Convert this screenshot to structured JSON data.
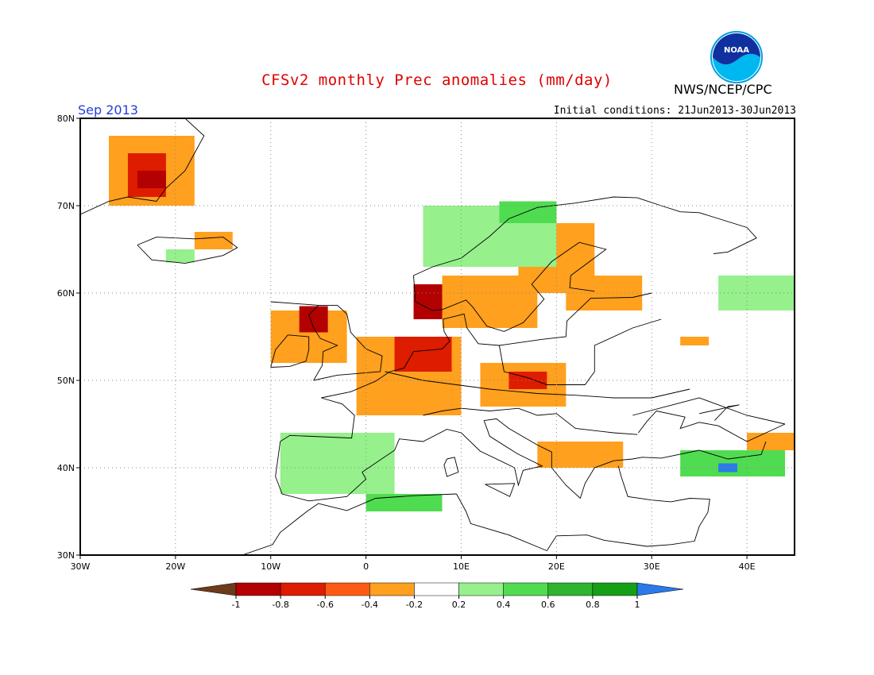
{
  "header": {
    "title": "CFSv2 monthly Prec anomalies (mm/day)",
    "org": "NWS/NCEP/CPC",
    "logo_text": "NOAA",
    "month": "Sep 2013",
    "init": "Initial conditions: 21Jun2013-30Jun2013"
  },
  "map": {
    "lon_range": [
      -30,
      45
    ],
    "lat_range": [
      30,
      80
    ],
    "lon_ticks": [
      {
        "v": -30,
        "label": "30W"
      },
      {
        "v": -20,
        "label": "20W"
      },
      {
        "v": -10,
        "label": "10W"
      },
      {
        "v": 0,
        "label": "0"
      },
      {
        "v": 10,
        "label": "10E"
      },
      {
        "v": 20,
        "label": "20E"
      },
      {
        "v": 30,
        "label": "30E"
      },
      {
        "v": 40,
        "label": "40E"
      }
    ],
    "lat_ticks": [
      {
        "v": 30,
        "label": "30N"
      },
      {
        "v": 40,
        "label": "40N"
      },
      {
        "v": 50,
        "label": "50N"
      },
      {
        "v": 60,
        "label": "60N"
      },
      {
        "v": 70,
        "label": "70N"
      },
      {
        "v": 80,
        "label": "80N"
      }
    ],
    "grid": true
  },
  "colorbar": {
    "labels": [
      "-1",
      "-0.8",
      "-0.6",
      "-0.4",
      "-0.2",
      "0.2",
      "0.4",
      "0.6",
      "0.8",
      "1"
    ],
    "colors": [
      "#6e3a1c",
      "#b30000",
      "#dd1c00",
      "#ff5a14",
      "#ffa01e",
      "#ffffff",
      "#96f08c",
      "#50dc50",
      "#2eb42e",
      "#14a014",
      "#2a7aea"
    ]
  },
  "chart_data": {
    "type": "heatmap",
    "variable": "Prec anomalies (mm/day)",
    "categories_legend": [
      "<-1",
      "-1 to -0.8",
      "-0.8 to -0.6",
      "-0.6 to -0.4",
      "-0.4 to -0.2",
      "-0.2 to 0.2",
      "0.2 to 0.4",
      "0.4 to 0.6",
      "0.6 to 0.8",
      "0.8 to 1",
      ">1"
    ],
    "regions": [
      {
        "lon": [
          -27,
          -18
        ],
        "lat": [
          70,
          78
        ],
        "class": 4
      },
      {
        "lon": [
          -25,
          -21
        ],
        "lat": [
          71,
          76
        ],
        "class": 2
      },
      {
        "lon": [
          -24,
          -21
        ],
        "lat": [
          72,
          74
        ],
        "class": 1
      },
      {
        "lon": [
          -18,
          -14
        ],
        "lat": [
          65,
          67
        ],
        "class": 4
      },
      {
        "lon": [
          -21,
          -18
        ],
        "lat": [
          63.5,
          65
        ],
        "class": 6
      },
      {
        "lon": [
          -10,
          -2
        ],
        "lat": [
          52,
          58
        ],
        "class": 4
      },
      {
        "lon": [
          -7,
          -4
        ],
        "lat": [
          55.5,
          58.5
        ],
        "class": 1
      },
      {
        "lon": [
          -1,
          10
        ],
        "lat": [
          46,
          55
        ],
        "class": 4
      },
      {
        "lon": [
          3,
          9
        ],
        "lat": [
          51,
          55
        ],
        "class": 2
      },
      {
        "lon": [
          5,
          9
        ],
        "lat": [
          57,
          61
        ],
        "class": 1
      },
      {
        "lon": [
          8,
          18
        ],
        "lat": [
          56,
          62
        ],
        "class": 4
      },
      {
        "lon": [
          16,
          24
        ],
        "lat": [
          60,
          68
        ],
        "class": 4
      },
      {
        "lon": [
          21,
          29
        ],
        "lat": [
          58,
          62
        ],
        "class": 4
      },
      {
        "lon": [
          12,
          21
        ],
        "lat": [
          47,
          52
        ],
        "class": 4
      },
      {
        "lon": [
          15,
          19
        ],
        "lat": [
          49,
          51
        ],
        "class": 2
      },
      {
        "lon": [
          18,
          27
        ],
        "lat": [
          40,
          43
        ],
        "class": 4
      },
      {
        "lon": [
          6,
          20
        ],
        "lat": [
          63,
          70
        ],
        "class": 6
      },
      {
        "lon": [
          14,
          20
        ],
        "lat": [
          68,
          70.5
        ],
        "class": 7
      },
      {
        "lon": [
          -9,
          3
        ],
        "lat": [
          37,
          44
        ],
        "class": 6
      },
      {
        "lon": [
          0,
          8
        ],
        "lat": [
          35,
          37
        ],
        "class": 7
      },
      {
        "lon": [
          33,
          44
        ],
        "lat": [
          39,
          42
        ],
        "class": 7
      },
      {
        "lon": [
          37,
          39
        ],
        "lat": [
          39.5,
          40.5
        ],
        "class": 10
      },
      {
        "lon": [
          37,
          45
        ],
        "lat": [
          58,
          62
        ],
        "class": 6
      },
      {
        "lon": [
          40,
          45
        ],
        "lat": [
          42,
          44
        ],
        "class": 4
      },
      {
        "lon": [
          33,
          36
        ],
        "lat": [
          54,
          55
        ],
        "class": 4
      }
    ]
  }
}
